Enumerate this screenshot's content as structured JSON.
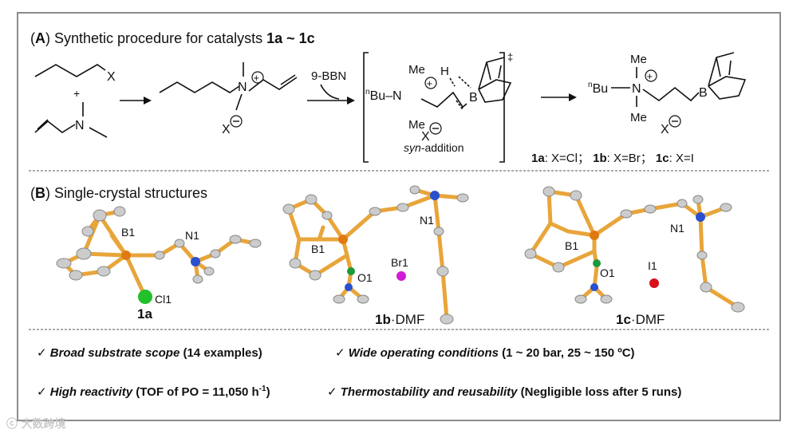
{
  "panel_a": {
    "label": "A",
    "title": "Synthetic procedure for catalysts ",
    "title_bold": "1a ~ 1c",
    "plus": "+",
    "reagent_1_x": "X",
    "reagent_2_n": "N",
    "intermediate_n": "N",
    "intermediate_x": "X",
    "reagent_arrow_label": "9-BBN",
    "ts": {
      "nbu": "Bu–N",
      "n_super": "n",
      "me_top": "Me",
      "me_bottom": "Me",
      "h": "H",
      "b": "B",
      "x": "X",
      "dagger": "‡",
      "caption": "syn",
      "caption_rest": "-addition"
    },
    "product": {
      "nbu": "Bu",
      "n_super": "n",
      "n": "N",
      "me_top": "Me",
      "me_bottom": "Me",
      "b": "B",
      "x": "X"
    },
    "catalyst_labels": [
      {
        "id": "1a",
        "text": ": X=Cl；"
      },
      {
        "id": "1b",
        "text": ": X=Br；"
      },
      {
        "id": "1c",
        "text": ": X=I"
      }
    ]
  },
  "panel_b": {
    "label": "B",
    "title": "Single-crystal structures",
    "structures": [
      {
        "name": "1a",
        "suffix": "",
        "atoms": {
          "b": "B1",
          "n": "N1",
          "halide": "Cl1"
        },
        "halide_color": "#22c02a"
      },
      {
        "name": "1b",
        "suffix": "·DMF",
        "atoms": {
          "b": "B1",
          "n": "N1",
          "o": "O1",
          "halide": "Br1"
        },
        "halide_color": "#d21ad6"
      },
      {
        "name": "1c",
        "suffix": "·DMF",
        "atoms": {
          "b": "B1",
          "n": "N1",
          "o": "O1",
          "halide": "I1"
        },
        "halide_color": "#d8101a"
      }
    ]
  },
  "features": [
    {
      "check": "✓",
      "title": "Broad substrate scope",
      "detail": "(14 examples)"
    },
    {
      "check": "✓",
      "title": "Wide operating conditions",
      "detail": " (1 ~ 20 bar, 25 ~ 150 ºC)"
    },
    {
      "check": "✓",
      "title": "High reactivity",
      "detail": " (TOF of PO = 11,050 h",
      "sup": "-1",
      "detail_end": ")"
    },
    {
      "check": "✓",
      "title": "Thermostability and reusability",
      "detail": " (Negligible loss after 5 runs)"
    }
  ],
  "watermark": "大数跨境"
}
